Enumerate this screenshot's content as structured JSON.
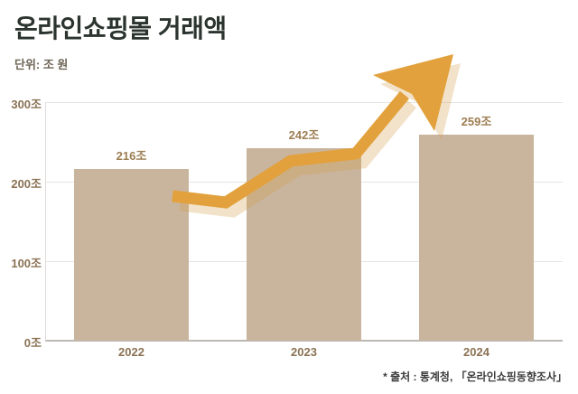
{
  "header": {
    "title": "온라인쇼핑몰 거래액",
    "unit_label": "단위: 조 원"
  },
  "chart_data": {
    "type": "bar",
    "title": "온라인쇼핑몰 거래액",
    "unit": "조 원",
    "categories": [
      "2022",
      "2023",
      "2024"
    ],
    "values": [
      216,
      242,
      259
    ],
    "value_labels": [
      "216조",
      "242조",
      "259조"
    ],
    "ylim": [
      0,
      300
    ],
    "yticks": [
      0,
      100,
      200,
      300
    ],
    "ytick_labels": [
      "0조",
      "100조",
      "200조",
      "300조"
    ],
    "grid": true,
    "legend": "none",
    "annotation": "upward-growth-arrow",
    "bar_color": "#c9b59e",
    "arrow_color": "#e2a13c",
    "arrow_shadow_color": "rgba(212,160,76,0.30)"
  },
  "footer": {
    "source": "* 출처 : 통계청, 「온라인쇼핑동향조사」"
  }
}
